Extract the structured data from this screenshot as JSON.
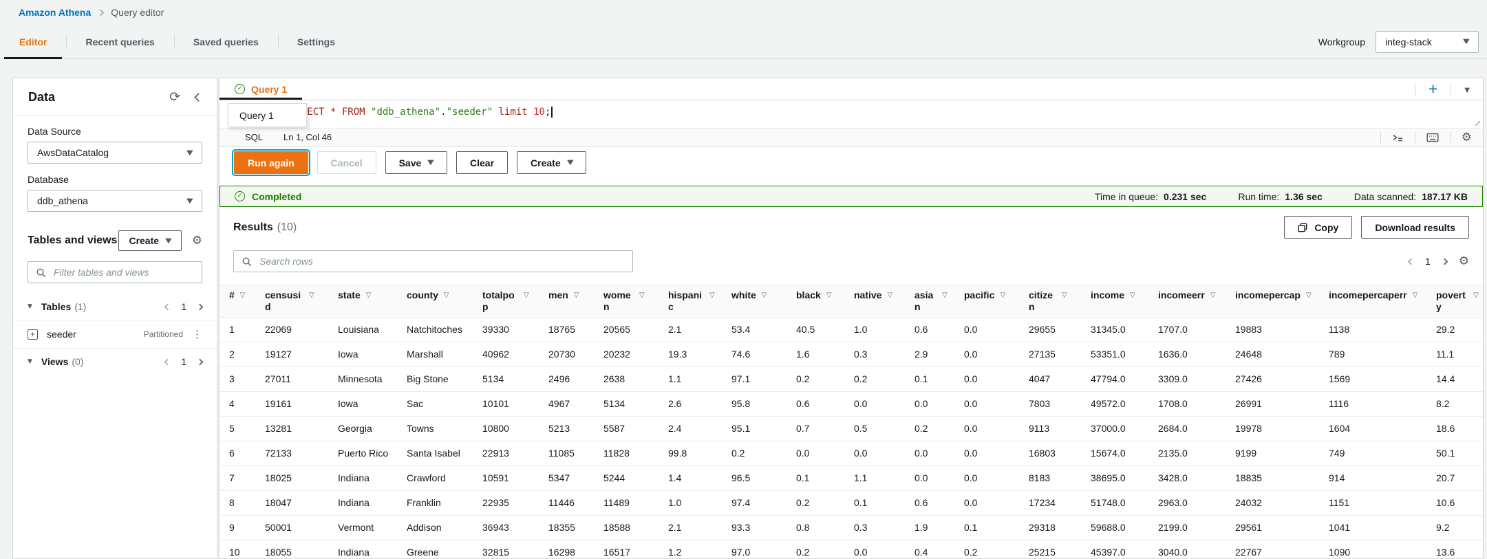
{
  "breadcrumb": {
    "root": "Amazon Athena",
    "current": "Query editor"
  },
  "top_tabs": [
    {
      "label": "Editor",
      "active": true
    },
    {
      "label": "Recent queries",
      "active": false
    },
    {
      "label": "Saved queries",
      "active": false
    },
    {
      "label": "Settings",
      "active": false
    }
  ],
  "workgroup": {
    "label": "Workgroup",
    "value": "integ-stack"
  },
  "sidebar": {
    "title": "Data",
    "data_source_label": "Data Source",
    "data_source_value": "AwsDataCatalog",
    "database_label": "Database",
    "database_value": "ddb_athena",
    "tables_views_title": "Tables and views",
    "create_button": "Create",
    "filter_placeholder": "Filter tables and views",
    "tables_label": "Tables",
    "tables_count": "(1)",
    "tables_page": "1",
    "table_name": "seeder",
    "table_badge": "Partitioned",
    "views_label": "Views",
    "views_count": "(0)",
    "views_page": "1"
  },
  "editor": {
    "tab_label": "Query 1",
    "tooltip_label": "Query 1",
    "sql_tokens": [
      {
        "text": "SELECT * FROM ",
        "type": "kw"
      },
      {
        "text": "\"ddb_athena\"",
        "type": "str"
      },
      {
        "text": ".",
        "type": "pl"
      },
      {
        "text": "\"seeder\"",
        "type": "str"
      },
      {
        "text": " ",
        "type": "pl"
      },
      {
        "text": "limit",
        "type": "kw"
      },
      {
        "text": " ",
        "type": "pl"
      },
      {
        "text": "10",
        "type": "num"
      },
      {
        "text": ";",
        "type": "pl"
      }
    ],
    "language": "SQL",
    "cursor_position": "Ln 1, Col 46",
    "run_button": "Run again",
    "cancel_button": "Cancel",
    "save_button": "Save",
    "clear_button": "Clear",
    "create_button": "Create"
  },
  "query_status": {
    "state": "Completed",
    "stats": [
      {
        "label": "Time in queue:",
        "value": "0.231 sec"
      },
      {
        "label": "Run time:",
        "value": "1.36 sec"
      },
      {
        "label": "Data scanned:",
        "value": "187.17 KB"
      }
    ]
  },
  "results": {
    "title": "Results",
    "count": "(10)",
    "copy_button": "Copy",
    "download_button": "Download results",
    "search_placeholder": "Search rows",
    "page": "1",
    "columns": [
      "#",
      "censusid",
      "state",
      "county",
      "totalpop",
      "men",
      "women",
      "hispanic",
      "white",
      "black",
      "native",
      "asian",
      "pacific",
      "citizen",
      "income",
      "incomeerr",
      "incomepercap",
      "incomepercaperr",
      "poverty"
    ],
    "rows": [
      [
        "1",
        "22069",
        "Louisiana",
        "Natchitoches",
        "39330",
        "18765",
        "20565",
        "2.1",
        "53.4",
        "40.5",
        "1.0",
        "0.6",
        "0.0",
        "29655",
        "31345.0",
        "1707.0",
        "19883",
        "1138",
        "29.2"
      ],
      [
        "2",
        "19127",
        "Iowa",
        "Marshall",
        "40962",
        "20730",
        "20232",
        "19.3",
        "74.6",
        "1.6",
        "0.3",
        "2.9",
        "0.0",
        "27135",
        "53351.0",
        "1636.0",
        "24648",
        "789",
        "11.1"
      ],
      [
        "3",
        "27011",
        "Minnesota",
        "Big Stone",
        "5134",
        "2496",
        "2638",
        "1.1",
        "97.1",
        "0.2",
        "0.2",
        "0.1",
        "0.0",
        "4047",
        "47794.0",
        "3309.0",
        "27426",
        "1569",
        "14.4"
      ],
      [
        "4",
        "19161",
        "Iowa",
        "Sac",
        "10101",
        "4967",
        "5134",
        "2.6",
        "95.8",
        "0.6",
        "0.0",
        "0.0",
        "0.0",
        "7803",
        "49572.0",
        "1708.0",
        "26991",
        "1116",
        "8.2"
      ],
      [
        "5",
        "13281",
        "Georgia",
        "Towns",
        "10800",
        "5213",
        "5587",
        "2.4",
        "95.1",
        "0.7",
        "0.5",
        "0.2",
        "0.0",
        "9113",
        "37000.0",
        "2684.0",
        "19978",
        "1604",
        "18.6"
      ],
      [
        "6",
        "72133",
        "Puerto Rico",
        "Santa Isabel",
        "22913",
        "11085",
        "11828",
        "99.8",
        "0.2",
        "0.0",
        "0.0",
        "0.0",
        "0.0",
        "16803",
        "15674.0",
        "2135.0",
        "9199",
        "749",
        "50.1"
      ],
      [
        "7",
        "18025",
        "Indiana",
        "Crawford",
        "10591",
        "5347",
        "5244",
        "1.4",
        "96.5",
        "0.1",
        "1.1",
        "0.0",
        "0.0",
        "8183",
        "38695.0",
        "3428.0",
        "18835",
        "914",
        "20.7"
      ],
      [
        "8",
        "18047",
        "Indiana",
        "Franklin",
        "22935",
        "11446",
        "11489",
        "1.0",
        "97.4",
        "0.2",
        "0.1",
        "0.6",
        "0.0",
        "17234",
        "51748.0",
        "2963.0",
        "24032",
        "1151",
        "10.6"
      ],
      [
        "9",
        "50001",
        "Vermont",
        "Addison",
        "36943",
        "18355",
        "18588",
        "2.1",
        "93.3",
        "0.8",
        "0.3",
        "1.9",
        "0.1",
        "29318",
        "59688.0",
        "2199.0",
        "29561",
        "1041",
        "9.2"
      ],
      [
        "10",
        "18055",
        "Indiana",
        "Greene",
        "32815",
        "16298",
        "16517",
        "1.2",
        "97.0",
        "0.2",
        "0.0",
        "0.4",
        "0.2",
        "25215",
        "45397.0",
        "3040.0",
        "22767",
        "1090",
        "13.6"
      ]
    ]
  },
  "icons": {
    "caret_down": "▼",
    "filter": "▽",
    "gear": "⚙",
    "refresh": "⟳",
    "dots_vertical": "⋮",
    "plus": "+",
    "check": "✓",
    "expand_plus": "+"
  },
  "colors": {
    "accent_orange": "#ec7211",
    "link_blue": "#0073bb",
    "success_green": "#1d8102"
  }
}
